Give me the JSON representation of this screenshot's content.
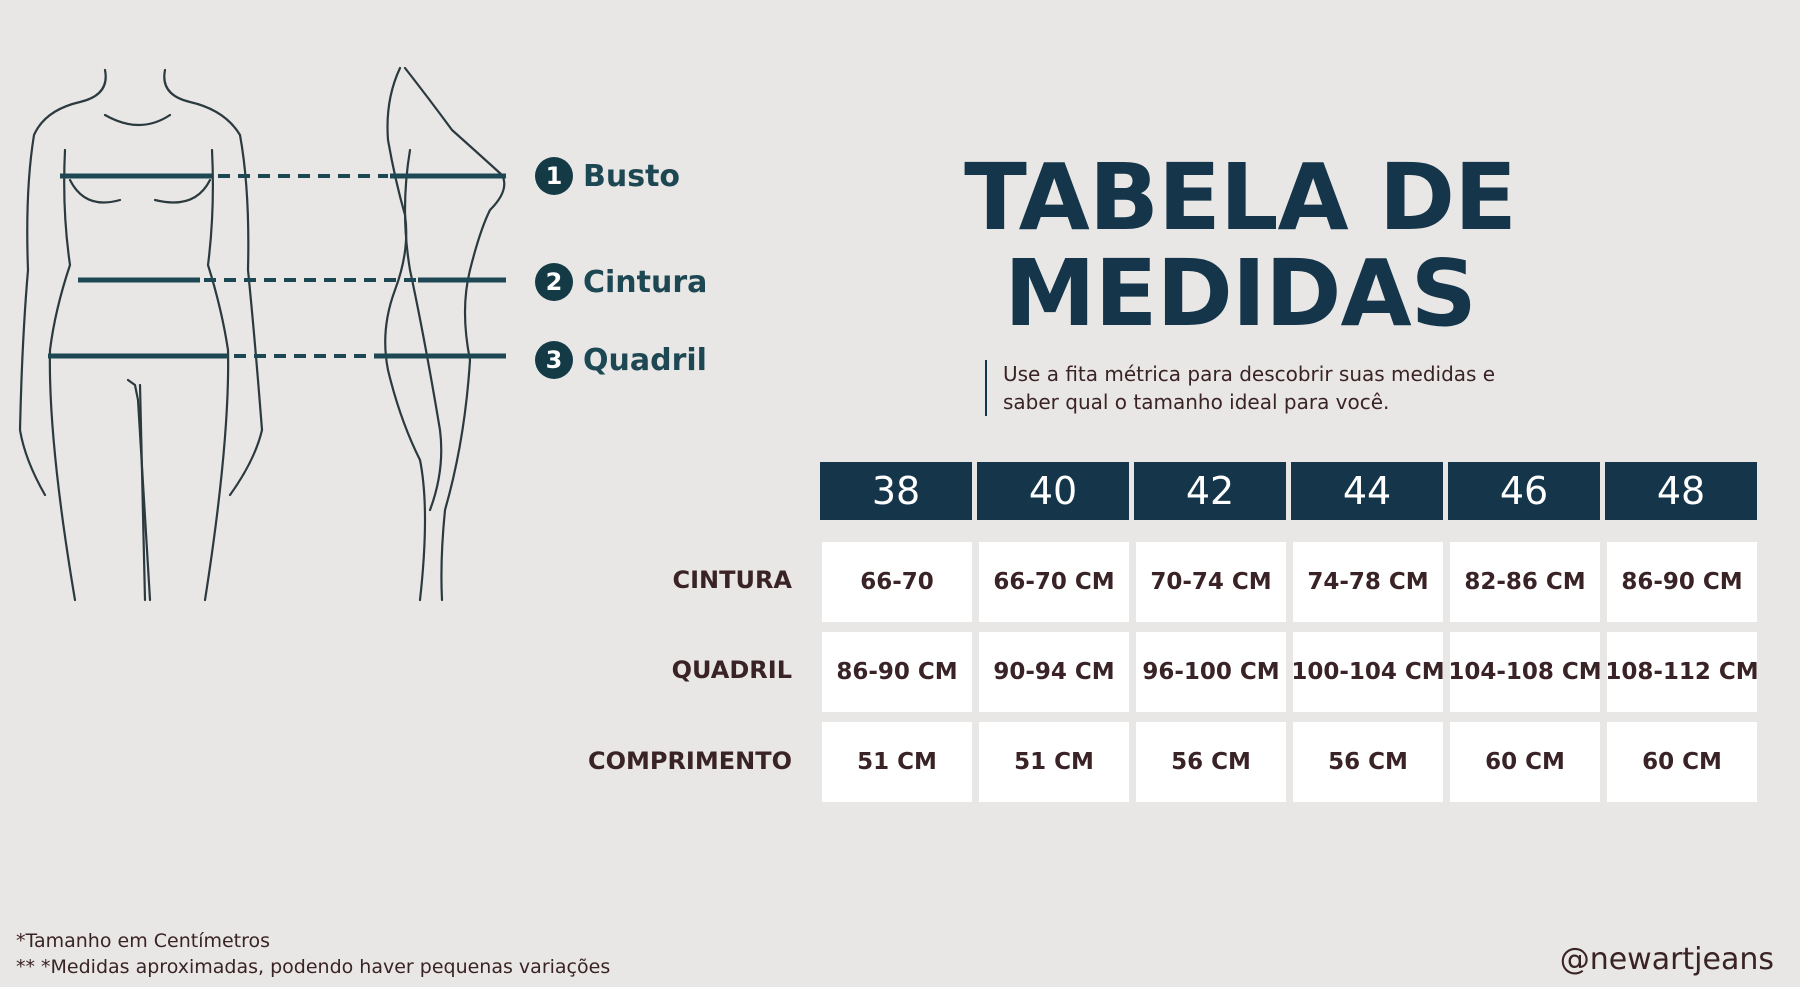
{
  "illustration": {
    "measures": [
      {
        "number": "1",
        "label": "Busto"
      },
      {
        "number": "2",
        "label": "Cintura"
      },
      {
        "number": "3",
        "label": "Quadril"
      }
    ]
  },
  "title": {
    "line1": "TABELA DE",
    "line2": "MEDIDAS"
  },
  "subtitle": "Use a fita métrica para descobrir suas medidas e saber qual o tamanho ideal para você.",
  "table": {
    "sizes": [
      "38",
      "40",
      "42",
      "44",
      "46",
      "48"
    ],
    "rows": [
      {
        "label": "CINTURA",
        "values": [
          "66-70",
          "66-70 CM",
          "70-74 CM",
          "74-78 CM",
          "82-86 CM",
          "86-90 CM"
        ]
      },
      {
        "label": "QUADRIL",
        "values": [
          "86-90 CM",
          "90-94 CM",
          "96-100 CM",
          "100-104 CM",
          "104-108 CM",
          "108-112 CM"
        ]
      },
      {
        "label": "COMPRIMENTO",
        "values": [
          "51 CM",
          "51 CM",
          "56 CM",
          "56 CM",
          "60 CM",
          "60 CM"
        ]
      }
    ]
  },
  "footnotes": [
    "*Tamanho em Centímetros",
    "** *Medidas aproximadas, podendo haver pequenas variações"
  ],
  "handle": "@newartjeans",
  "colors": {
    "navy": "#14354a",
    "background": "#e8e7e5",
    "text": "#3a2326"
  }
}
